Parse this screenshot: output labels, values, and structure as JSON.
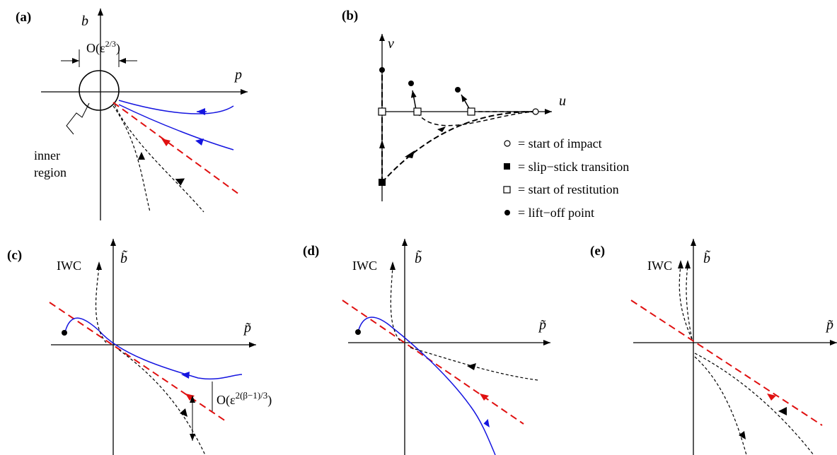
{
  "colors": {
    "axis": "#000000",
    "path": "#000000",
    "blue": "#1515e0",
    "red": "#e01010"
  },
  "panel_a": {
    "label": "(a)",
    "axis_p": "p",
    "axis_b": "b",
    "scale_label": "O(ε",
    "scale_exp": "2/3",
    "scale_close": ")",
    "inner_region": [
      "inner",
      "region"
    ]
  },
  "panel_b": {
    "label": "(b)",
    "axis_u": "u",
    "axis_v": "v",
    "legend": [
      {
        "icon": "open-circle-icon",
        "text": "=  start of impact"
      },
      {
        "icon": "filled-square-icon",
        "text": "=  slip−stick transition"
      },
      {
        "icon": "open-square-icon",
        "text": "=  start of restitution"
      },
      {
        "icon": "filled-circle-icon",
        "text": "=  lift−off point"
      }
    ]
  },
  "panel_c": {
    "label": "(c)",
    "axis_p": "p̃",
    "axis_b": "b̃",
    "iwc": "IWC",
    "scale_label": "O(ε",
    "scale_exp": "2(β−1)/3",
    "scale_close": ")"
  },
  "panel_d": {
    "label": "(d)",
    "axis_p": "p̃",
    "axis_b": "b̃",
    "iwc": "IWC"
  },
  "panel_e": {
    "label": "(e)",
    "axis_p": "p̃",
    "axis_b": "b̃",
    "iwc": "IWC"
  }
}
